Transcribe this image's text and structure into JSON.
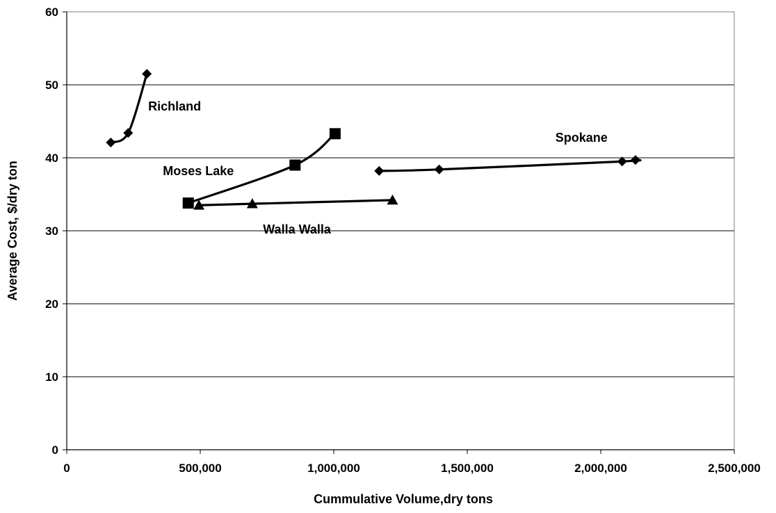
{
  "chart_data": {
    "type": "line",
    "title": "",
    "xlabel": "Cummulative Volume,dry tons",
    "ylabel": "Average Cost, $/dry ton",
    "xlim": [
      0,
      2500000
    ],
    "ylim": [
      0,
      60
    ],
    "x_ticks": [
      0,
      500000,
      1000000,
      1500000,
      2000000,
      2500000
    ],
    "x_tick_labels": [
      "0",
      "500,000",
      "1,000,000",
      "1,500,000",
      "2,000,000",
      "2,500,000"
    ],
    "y_ticks": [
      0,
      10,
      20,
      30,
      40,
      50,
      60
    ],
    "y_tick_labels": [
      "0",
      "10",
      "20",
      "30",
      "40",
      "50",
      "60"
    ],
    "grid": "horizontal",
    "legend": "none (series labeled directly on plot)",
    "line_color": "#000000",
    "series": [
      {
        "name": "Richland",
        "marker": "diamond",
        "x": [
          165000,
          230000,
          300000
        ],
        "y": [
          42.1,
          43.4,
          51.5
        ],
        "label_at": [
          305000,
          46.5
        ]
      },
      {
        "name": "Moses Lake",
        "marker": "square",
        "x": [
          455000,
          855000,
          1005000
        ],
        "y": [
          33.8,
          39.0,
          43.3
        ],
        "label_at": [
          360000,
          37.6
        ]
      },
      {
        "name": "Spokane",
        "marker": "diamond",
        "x": [
          1170000,
          1395000,
          2080000,
          2130000
        ],
        "y": [
          38.2,
          38.4,
          39.5,
          39.7
        ],
        "label_at": [
          1830000,
          42.2
        ]
      },
      {
        "name": "Walla Walla",
        "marker": "triangle",
        "x": [
          495000,
          695000,
          1220000
        ],
        "y": [
          33.5,
          33.7,
          34.2
        ],
        "label_at": [
          735000,
          29.6
        ]
      }
    ]
  }
}
